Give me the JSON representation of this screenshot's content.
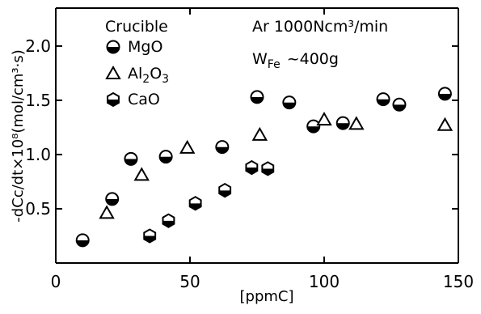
{
  "chart_data": {
    "type": "scatter",
    "title": "",
    "xlabel": "[ppmC]",
    "ylabel": "-dCc/dt×10⁸(mol/cm³·s)",
    "xlim": [
      0,
      150
    ],
    "ylim": [
      0,
      2.35
    ],
    "x_ticks": [
      0,
      50,
      100,
      150
    ],
    "y_ticks": [
      0.5,
      1.0,
      1.5,
      2.0
    ],
    "x_tick_labels": [
      "0",
      "50",
      "100",
      "150"
    ],
    "y_tick_labels": [
      "0.5",
      "1.0",
      "1.5",
      "2.0"
    ],
    "grid": false,
    "legend": {
      "title": "Crucible",
      "placement": "top-left",
      "entries": [
        "MgO",
        "Al2O3",
        "CaO"
      ]
    },
    "annotations": {
      "gas": "Ar 1000Ncm³/min",
      "mass_prefix": "W",
      "mass_sub": "Fe",
      "mass_value": "~400g"
    },
    "series": [
      {
        "name": "MgO",
        "marker": "half-filled-circle",
        "x": [
          10,
          21,
          28,
          41,
          62,
          75,
          87,
          96,
          107,
          122,
          128,
          145
        ],
        "y": [
          0.21,
          0.59,
          0.96,
          0.98,
          1.07,
          1.53,
          1.48,
          1.26,
          1.29,
          1.51,
          1.46,
          1.56
        ]
      },
      {
        "name": "Al2O3",
        "marker": "triangle",
        "x": [
          19,
          32,
          49,
          76,
          100,
          112,
          145
        ],
        "y": [
          0.46,
          0.81,
          1.06,
          1.18,
          1.32,
          1.28,
          1.27
        ]
      },
      {
        "name": "CaO",
        "marker": "half-filled-hexagon",
        "x": [
          35,
          42,
          52,
          63,
          73,
          79
        ],
        "y": [
          0.25,
          0.39,
          0.55,
          0.67,
          0.88,
          0.87
        ]
      }
    ]
  }
}
